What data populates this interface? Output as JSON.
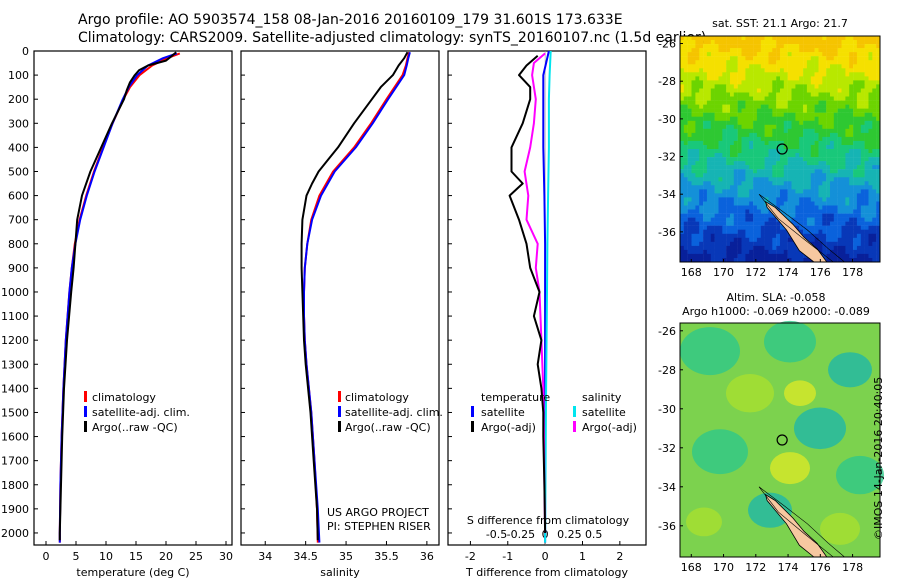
{
  "header": {
    "line1": "Argo profile: AO 5903574_158 08-Jan-2016 20160109_179 31.601S 173.633E",
    "line2": "Climatology: CARS2009. Satellite-adjusted climatology: synTS_20160107.nc (1.5d earlier)"
  },
  "credit": "©IMOS 14-Jan-2016 20:40:05",
  "colors": {
    "climatology": "#ff0000",
    "satellite": "#0000ff",
    "argo": "#000000",
    "sal_sat": "#00e5ee",
    "sal_argo": "#ff00ff",
    "land": "#f7c8a0"
  },
  "depth_ticks": [
    "0",
    "100",
    "200",
    "300",
    "400",
    "500",
    "600",
    "700",
    "800",
    "900",
    "1000",
    "1100",
    "1200",
    "1300",
    "1400",
    "1500",
    "1600",
    "1700",
    "1800",
    "1900",
    "2000"
  ],
  "chart_data": [
    {
      "type": "line",
      "xlabel": "temperature (deg C)",
      "xlim": [
        -2,
        31
      ],
      "ylim": [
        0,
        2050
      ],
      "xticks": [
        "0",
        "5",
        "10",
        "15",
        "20",
        "25",
        "30"
      ],
      "legend": [
        "climatology",
        "satellite-adj. clim.",
        "Argo(..raw -QC)"
      ],
      "series": [
        {
          "name": "climatology",
          "color": "#ff0000",
          "depth": [
            10,
            30,
            60,
            100,
            150,
            200,
            300,
            400,
            500,
            600,
            700,
            800,
            900,
            1000,
            1200,
            1400,
            1600,
            1800,
            2000,
            2040
          ],
          "values": [
            22.3,
            20.2,
            17.7,
            15.6,
            14.0,
            12.9,
            11.1,
            9.5,
            8.0,
            6.7,
            5.6,
            4.8,
            4.3,
            3.9,
            3.3,
            2.9,
            2.6,
            2.4,
            2.3,
            2.3
          ]
        },
        {
          "name": "satellite-adj. clim.",
          "color": "#0000ff",
          "depth": [
            10,
            30,
            60,
            100,
            150,
            200,
            300,
            400,
            500,
            600,
            700,
            800,
            900,
            1000,
            1200,
            1400,
            1600,
            1800,
            2000,
            2040
          ],
          "values": [
            21.8,
            19.5,
            17.0,
            15.2,
            13.8,
            12.8,
            11.1,
            9.6,
            8.1,
            6.8,
            5.7,
            4.9,
            4.3,
            3.9,
            3.3,
            2.9,
            2.6,
            2.4,
            2.3,
            2.3
          ]
        },
        {
          "name": "Argo(..raw -QC)",
          "color": "#000000",
          "depth": [
            5,
            20,
            40,
            60,
            80,
            100,
            130,
            160,
            200,
            300,
            400,
            500,
            600,
            700,
            800,
            900,
            1000,
            1200,
            1400,
            1600,
            1800,
            2000,
            2030
          ],
          "values": [
            21.7,
            21.0,
            20.0,
            17.0,
            15.5,
            14.8,
            14.0,
            13.5,
            13.0,
            11.0,
            9.2,
            7.4,
            6.0,
            5.2,
            4.9,
            4.6,
            4.2,
            3.5,
            3.0,
            2.7,
            2.5,
            2.3,
            2.3
          ]
        }
      ]
    },
    {
      "type": "line",
      "xlabel": "salinity",
      "xlim": [
        33.7,
        36.15
      ],
      "ylim": [
        0,
        2050
      ],
      "xticks": [
        "34",
        "34.5",
        "35",
        "35.5",
        "36"
      ],
      "legend": [
        "climatology",
        "satellite-adj. clim.",
        "Argo(..raw -QC)"
      ],
      "annotation": [
        "US ARGO PROJECT",
        "PI: STEPHEN RISER"
      ],
      "series": [
        {
          "name": "climatology",
          "color": "#ff0000",
          "depth": [
            5,
            30,
            60,
            100,
            150,
            200,
            300,
            400,
            500,
            600,
            700,
            800,
            900,
            1000,
            1100,
            1200,
            1300,
            1400,
            1500,
            1700,
            1900,
            2040
          ],
          "values": [
            35.78,
            35.76,
            35.74,
            35.7,
            35.6,
            35.5,
            35.31,
            35.1,
            34.84,
            34.67,
            34.57,
            34.52,
            34.49,
            34.48,
            34.48,
            34.49,
            34.51,
            34.54,
            34.57,
            34.61,
            34.64,
            34.65
          ]
        },
        {
          "name": "satellite-adj. clim.",
          "color": "#0000ff",
          "depth": [
            5,
            30,
            60,
            100,
            150,
            200,
            300,
            400,
            500,
            600,
            700,
            800,
            900,
            1000,
            1100,
            1200,
            1300,
            1400,
            1500,
            1700,
            1900,
            2040
          ],
          "values": [
            35.79,
            35.77,
            35.75,
            35.72,
            35.62,
            35.52,
            35.33,
            35.12,
            34.86,
            34.69,
            34.58,
            34.52,
            34.49,
            34.48,
            34.48,
            34.49,
            34.51,
            34.54,
            34.57,
            34.61,
            34.65,
            34.67
          ]
        },
        {
          "name": "Argo(..raw -QC)",
          "color": "#000000",
          "depth": [
            5,
            30,
            60,
            100,
            150,
            200,
            300,
            400,
            450,
            500,
            550,
            600,
            700,
            800,
            900,
            1000,
            1100,
            1200,
            1300,
            1400,
            1500,
            1700,
            1900,
            2030
          ],
          "values": [
            35.76,
            35.72,
            35.65,
            35.58,
            35.43,
            35.32,
            35.1,
            34.9,
            34.78,
            34.66,
            34.58,
            34.51,
            34.46,
            34.45,
            34.45,
            34.46,
            34.47,
            34.48,
            34.5,
            34.53,
            34.56,
            34.6,
            34.64,
            34.65
          ]
        }
      ]
    },
    {
      "type": "line",
      "xlabel": "T difference from climatology",
      "toplabel": "S difference from climatology",
      "xlim": [
        -2.6,
        2.7
      ],
      "ylim": [
        0,
        2050
      ],
      "xticks": [
        "-2",
        "-1",
        "0",
        "1",
        "2"
      ],
      "topticks": [
        "-0.5",
        "-0.25",
        "0",
        "0.25",
        "0.5"
      ],
      "legend": [
        "temperature",
        "satellite",
        "Argo(-adj)",
        "salinity",
        "satellite",
        "Argo(-adj)"
      ],
      "series": [
        {
          "name": "satellite",
          "color": "#0000ff",
          "depth": [
            0,
            100,
            200,
            400,
            600,
            800,
            1000,
            1500,
            2040
          ],
          "values": [
            0.1,
            -0.05,
            -0.05,
            -0.05,
            -0.02,
            0,
            0,
            0,
            0
          ]
        },
        {
          "name": "satellite",
          "color": "#00e5ee",
          "depth": [
            0,
            100,
            200,
            400,
            600,
            800,
            1000,
            1500,
            2040
          ],
          "values": [
            0.15,
            0.12,
            0.1,
            0.1,
            0.08,
            0.06,
            0.05,
            0.02,
            0
          ]
        },
        {
          "name": "Argo(-adj)",
          "color": "#ff00ff",
          "depth": [
            10,
            50,
            100,
            200,
            300,
            400,
            500,
            600,
            700,
            800,
            900,
            1000,
            1200,
            1400,
            1600,
            1800,
            2000
          ],
          "values": [
            0.0,
            -0.3,
            -0.35,
            -0.25,
            -0.3,
            -0.4,
            -0.55,
            -0.45,
            -0.5,
            -0.2,
            -0.25,
            -0.15,
            -0.1,
            -0.05,
            -0.03,
            -0.02,
            0
          ]
        },
        {
          "name": "Argo(-adj)",
          "color": "#000000",
          "depth": [
            20,
            60,
            100,
            150,
            200,
            300,
            400,
            500,
            550,
            600,
            700,
            800,
            900,
            1000,
            1100,
            1200,
            1300,
            1400,
            1500,
            1600,
            1800,
            2000
          ],
          "values": [
            -0.2,
            -0.5,
            -0.7,
            -0.4,
            -0.4,
            -0.6,
            -0.9,
            -0.9,
            -0.6,
            -0.95,
            -0.7,
            -0.5,
            -0.4,
            -0.15,
            -0.3,
            -0.1,
            -0.2,
            -0.1,
            -0.05,
            -0.05,
            -0.02,
            0
          ]
        }
      ]
    },
    {
      "type": "heatmap",
      "title": "sat. SST: 21.1  Argo: 21.7",
      "xticks": [
        "168",
        "170",
        "172",
        "174",
        "176",
        "178"
      ],
      "yticks": [
        "-26",
        "-28",
        "-30",
        "-32",
        "-34",
        "-36"
      ],
      "marker": {
        "lon": 173.633,
        "lat": -31.601
      }
    },
    {
      "type": "heatmap",
      "title": [
        "Altim. SLA: -0.058",
        "Argo h1000: -0.069 h2000: -0.089"
      ],
      "xticks": [
        "168",
        "170",
        "172",
        "174",
        "176",
        "178"
      ],
      "yticks": [
        "-26",
        "-28",
        "-30",
        "-32",
        "-34",
        "-36"
      ],
      "marker": {
        "lon": 173.633,
        "lat": -31.601
      }
    }
  ]
}
